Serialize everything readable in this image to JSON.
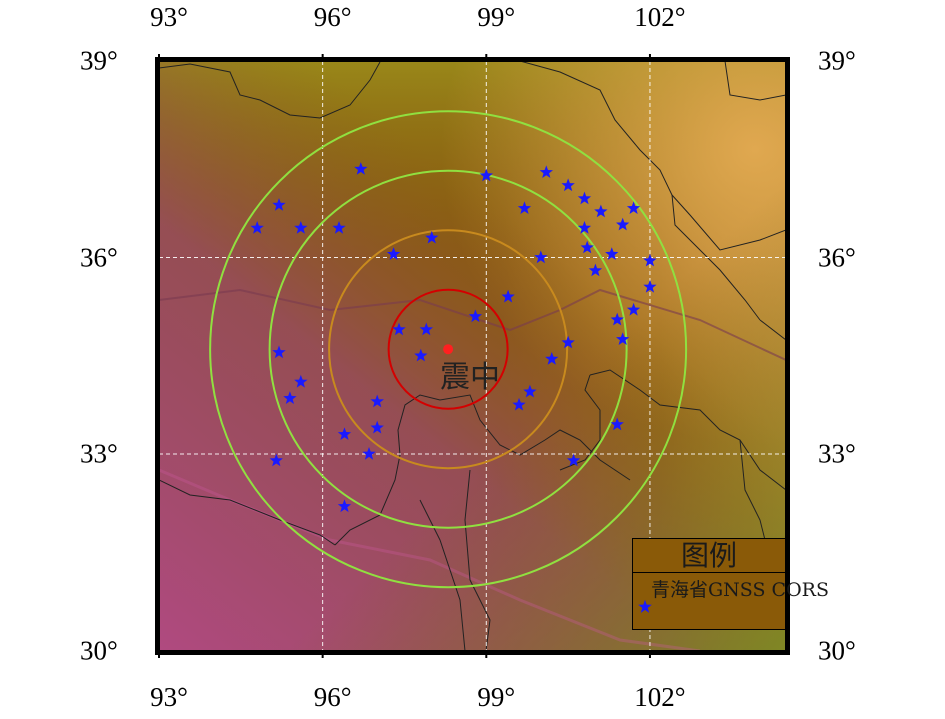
{
  "map": {
    "lon_ticks": [
      "93°",
      "96°",
      "99°",
      "102°"
    ],
    "lat_ticks": [
      "39°",
      "36°",
      "33°",
      "30°"
    ],
    "lon_values": [
      93,
      96,
      99,
      102
    ],
    "lat_values": [
      39,
      36,
      33,
      30
    ],
    "extent": {
      "lon": [
        93,
        104.5
      ],
      "lat": [
        30,
        39
      ]
    },
    "epicenter": {
      "lon": 98.3,
      "lat": 34.6,
      "label": "震中",
      "color": "#ff2020"
    },
    "rings": [
      {
        "radius_km": 100,
        "color": "#d40000"
      },
      {
        "radius_km": 200,
        "color": "#c88a1e"
      },
      {
        "radius_km": 300,
        "color": "#90e040"
      },
      {
        "radius_km": 400,
        "color": "#90e040"
      }
    ],
    "stations": [
      [
        96.7,
        37.35
      ],
      [
        99.0,
        37.25
      ],
      [
        100.1,
        37.3
      ],
      [
        100.5,
        37.1
      ],
      [
        100.8,
        36.9
      ],
      [
        99.7,
        36.75
      ],
      [
        101.1,
        36.7
      ],
      [
        101.7,
        36.75
      ],
      [
        95.2,
        36.8
      ],
      [
        94.8,
        36.45
      ],
      [
        95.6,
        36.45
      ],
      [
        96.3,
        36.45
      ],
      [
        100.8,
        36.45
      ],
      [
        101.5,
        36.5
      ],
      [
        98.0,
        36.3
      ],
      [
        97.3,
        36.05
      ],
      [
        100.0,
        36.0
      ],
      [
        100.85,
        36.15
      ],
      [
        101.3,
        36.05
      ],
      [
        102.0,
        35.95
      ],
      [
        101.0,
        35.8
      ],
      [
        102.0,
        35.55
      ],
      [
        99.4,
        35.4
      ],
      [
        98.8,
        35.1
      ],
      [
        101.7,
        35.2
      ],
      [
        97.4,
        34.9
      ],
      [
        97.9,
        34.9
      ],
      [
        101.4,
        35.05
      ],
      [
        101.5,
        34.75
      ],
      [
        100.5,
        34.7
      ],
      [
        95.2,
        34.55
      ],
      [
        97.8,
        34.5
      ],
      [
        100.2,
        34.45
      ],
      [
        95.6,
        34.1
      ],
      [
        99.8,
        33.95
      ],
      [
        95.4,
        33.85
      ],
      [
        97.0,
        33.8
      ],
      [
        99.6,
        33.75
      ],
      [
        97.0,
        33.4
      ],
      [
        96.4,
        33.3
      ],
      [
        101.4,
        33.45
      ],
      [
        96.85,
        33.0
      ],
      [
        100.6,
        32.9
      ],
      [
        95.15,
        32.9
      ],
      [
        96.4,
        32.2
      ]
    ],
    "graticule_color": "#ffffff",
    "station_color": "#1a1aff"
  },
  "legend": {
    "title": "图例",
    "entry_label": "青海省GNSS CORS"
  }
}
